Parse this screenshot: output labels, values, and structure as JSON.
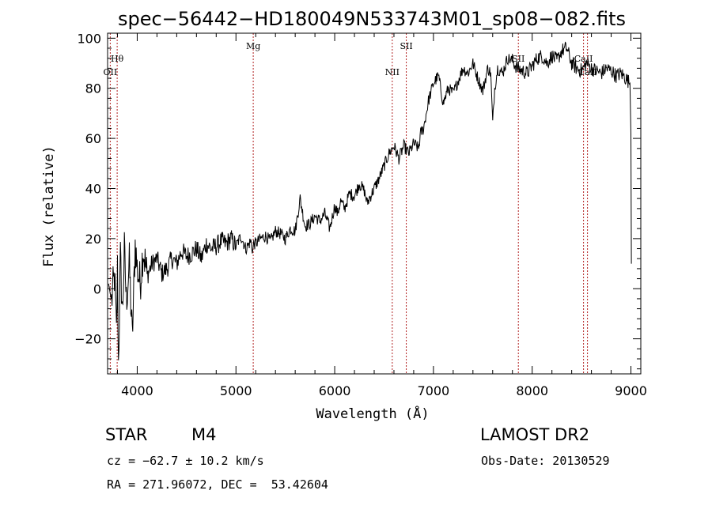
{
  "chart_data": {
    "type": "line",
    "title": "spec−56442−HD180049N533743M01_sp08−082.fits",
    "xlabel": "Wavelength (Å)",
    "ylabel": "Flux (relative)",
    "xlim": [
      3700,
      9100
    ],
    "ylim": [
      -34,
      102
    ],
    "xticks": [
      4000,
      5000,
      6000,
      7000,
      8000,
      9000
    ],
    "yticks": [
      -20,
      0,
      20,
      40,
      60,
      80,
      100
    ],
    "ytick_labels": [
      "−20",
      "0",
      "20",
      "40",
      "60",
      "80",
      "100"
    ],
    "line_color": "#000000",
    "marker_color": "#b22222",
    "spectral_lines": [
      {
        "label": "Hθ",
        "x": 3797,
        "label_row": "upper"
      },
      {
        "label": "OII",
        "x": 3727,
        "label_row": "lower"
      },
      {
        "label": "Mg",
        "x": 5175,
        "label_row": "top"
      },
      {
        "label": "NII",
        "x": 6583,
        "label_row": "lower"
      },
      {
        "label": "SII",
        "x": 6725,
        "label_row": "top"
      },
      {
        "label": "SII",
        "x": 7860,
        "label_row": "upper"
      },
      {
        "label": "CaII",
        "x": 8520,
        "label_row": "upper"
      },
      {
        "label": "CaII",
        "x": 8560,
        "label_row": "lower"
      }
    ],
    "series": [
      {
        "x": [
          3710,
          3740,
          3770,
          3790,
          3800,
          3810,
          3830,
          3850,
          3870,
          3890,
          3920,
          3950,
          3980,
          4000,
          4030,
          4060,
          4100,
          4150,
          4200,
          4250,
          4300,
          4350,
          4400,
          4450,
          4500,
          4550,
          4600,
          4650,
          4700,
          4750,
          4800,
          4850,
          4900,
          4950,
          5000,
          5050,
          5100,
          5150,
          5170,
          5180,
          5200,
          5250,
          5300,
          5350,
          5400,
          5450,
          5500,
          5550,
          5600,
          5650,
          5700,
          5750,
          5800,
          5850,
          5900,
          5950,
          6000,
          6030,
          6060,
          6100,
          6150,
          6200,
          6250,
          6300,
          6330,
          6350,
          6400,
          6450,
          6500,
          6550,
          6600,
          6650,
          6700,
          6750,
          6800,
          6850,
          6870,
          6900,
          6950,
          7000,
          7050,
          7100,
          7150,
          7200,
          7250,
          7300,
          7350,
          7400,
          7450,
          7500,
          7550,
          7580,
          7600,
          7620,
          7650,
          7700,
          7750,
          7800,
          7850,
          7900,
          7950,
          8000,
          8050,
          8100,
          8150,
          8200,
          8250,
          8300,
          8350,
          8400,
          8450,
          8500,
          8550,
          8600,
          8650,
          8700,
          8750,
          8800,
          8850,
          8900,
          8950,
          8990,
          9000,
          9005
        ],
        "y": [
          2,
          -5,
          5,
          -18,
          8,
          -30,
          12,
          -10,
          15,
          -5,
          10,
          -20,
          18,
          8,
          2,
          16,
          5,
          10,
          12,
          6,
          8,
          12,
          10,
          15,
          13,
          14,
          16,
          12,
          18,
          16,
          17,
          19,
          18,
          20,
          17,
          21,
          16,
          19,
          15,
          18,
          18,
          20,
          21,
          19,
          23,
          22,
          20,
          24,
          23,
          36,
          25,
          26,
          29,
          27,
          30,
          24,
          33,
          30,
          35,
          32,
          38,
          37,
          42,
          39,
          34,
          36,
          40,
          44,
          49,
          54,
          57,
          52,
          57,
          54,
          58,
          56,
          62,
          64,
          75,
          82,
          85,
          74,
          80,
          78,
          83,
          88,
          86,
          90,
          84,
          79,
          88,
          86,
          66,
          80,
          88,
          86,
          92,
          91,
          88,
          87,
          86,
          89,
          92,
          93,
          90,
          93,
          91,
          95,
          96,
          90,
          88,
          87,
          90,
          88,
          87,
          86,
          88,
          87,
          85,
          86,
          84,
          82,
          62,
          10
        ]
      }
    ]
  },
  "info": {
    "object_class": "STAR",
    "subclass": "M4",
    "cz": "cz = −62.7 ± 10.2 km/s",
    "coords": "RA = 271.96072, DEC =  53.42604",
    "survey": "LAMOST DR2",
    "obs_date": "Obs-Date: 20130529"
  }
}
